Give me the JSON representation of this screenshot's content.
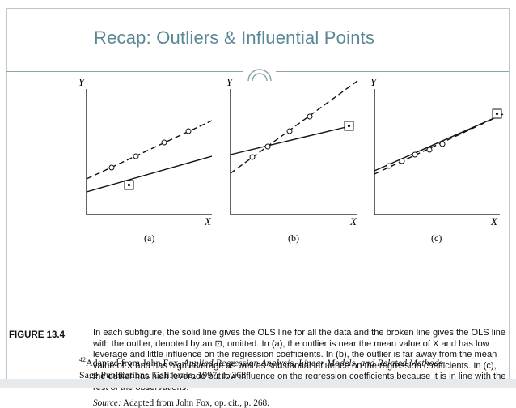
{
  "slide": {
    "title": "Recap: Outliers & Influential Points",
    "accent_color": "#5a8794"
  },
  "figure": {
    "panels": [
      {
        "label": "(a)",
        "y_axis": "Y",
        "x_axis": "X"
      },
      {
        "label": "(b)",
        "y_axis": "Y",
        "x_axis": "X"
      },
      {
        "label": "(c)",
        "y_axis": "Y",
        "x_axis": "X"
      }
    ],
    "caption_label": "FIGURE 13.4",
    "caption_text": "In each subfigure, the solid line gives the OLS line for all the data and the broken line gives the OLS line with the outlier, denoted by an ⊡, omitted. In (a), the outlier is near the mean value of X and has low leverage and little influence on the regression coefficients. In (b), the outlier is far away from the mean value of X and has high leverage as well as substantial influence on the regression coefficients. In (c), the outlier has high leverage but low influence on the regression coefficients because it is in line with the rest of the observations.",
    "source_label": "Source:",
    "source_text": " Adapted from John Fox, op. cit., p. 268."
  },
  "footnote": {
    "number": "42",
    "prefix": "Adapted from John Fox, ",
    "book_title": "Applied Regression Analysis, Linear Models, and Related Methods",
    "line2": "Sage Publications, California, 1997, p. 268."
  }
}
